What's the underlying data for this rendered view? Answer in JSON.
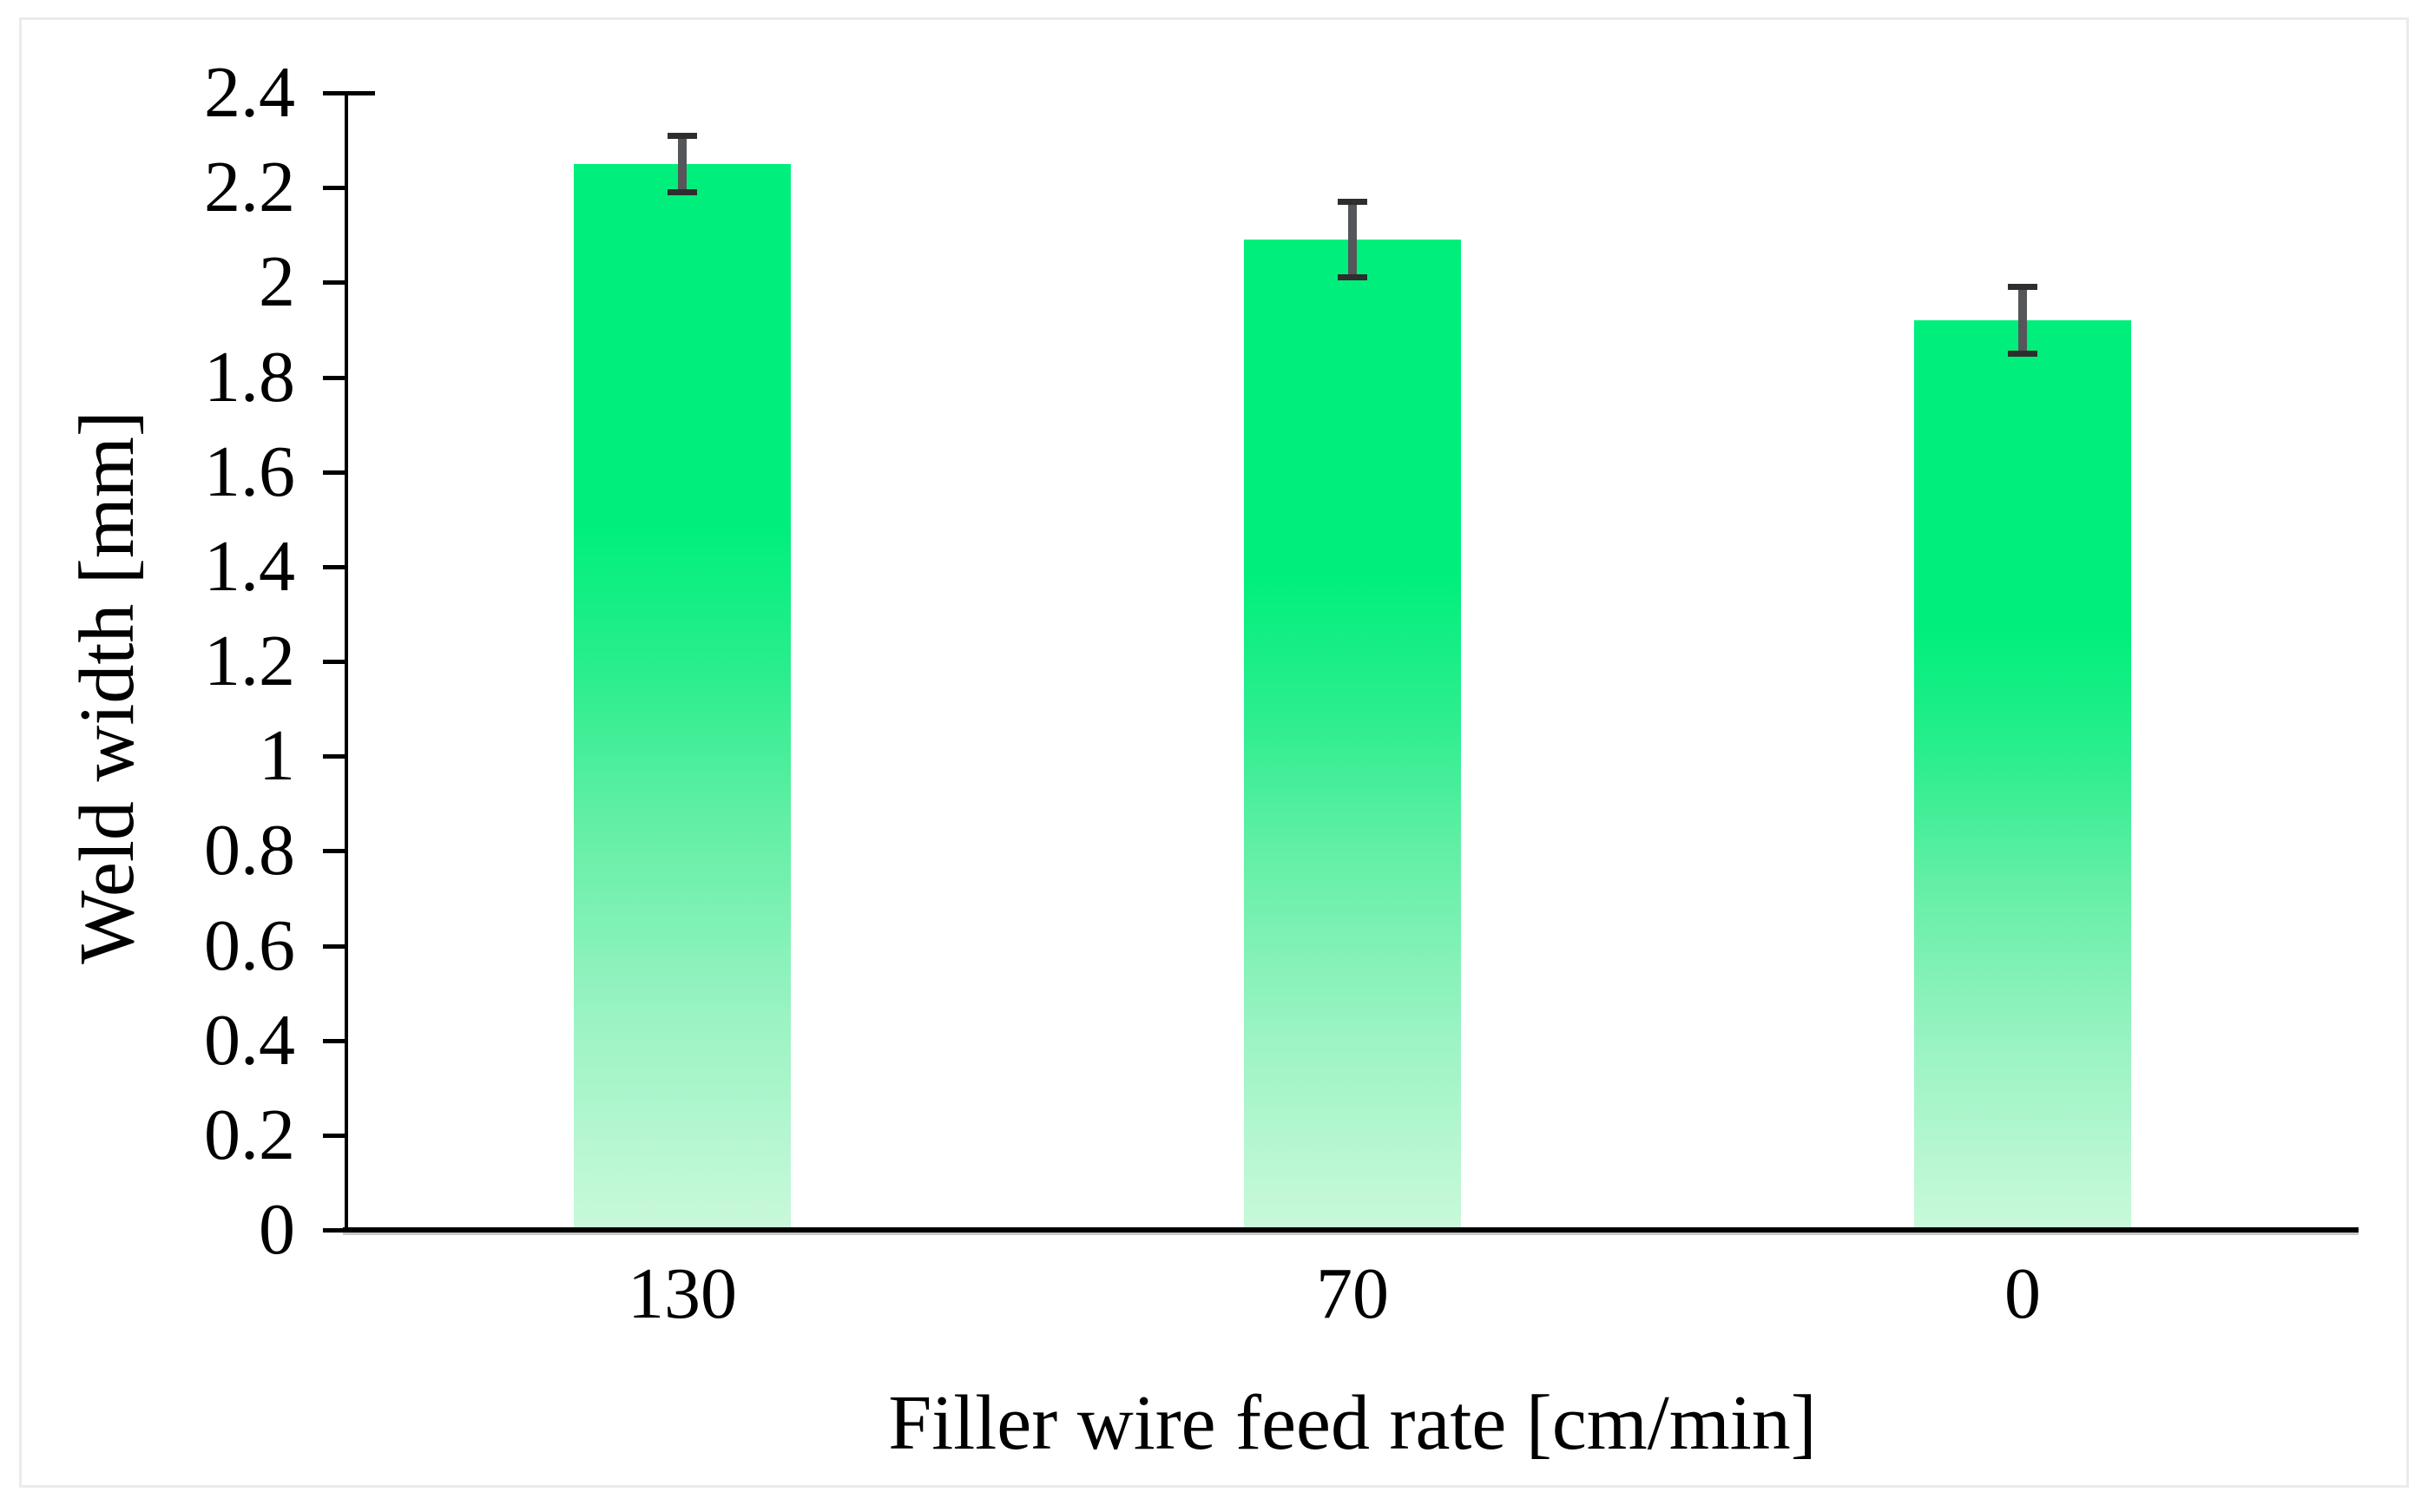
{
  "page": {
    "background_color": "#ffffff",
    "frame_border_color": "#ebebeb"
  },
  "chart_data": {
    "type": "bar",
    "title": "",
    "xlabel": "Filler wire feed rate [cm/min]",
    "ylabel": "Weld width [mm]",
    "categories": [
      "130",
      "70",
      "0"
    ],
    "values": [
      2.25,
      2.09,
      1.92
    ],
    "error_bars": [
      0.06,
      0.08,
      0.07
    ],
    "ylim": [
      0,
      2.4
    ],
    "ytick_step": 0.2,
    "ytick_labels": [
      "0",
      "0.2",
      "0.4",
      "0.6",
      "0.8",
      "1",
      "1.2",
      "1.4",
      "1.6",
      "1.8",
      "2",
      "2.2",
      "2.4"
    ],
    "grid": false,
    "legend": "none",
    "axis_color": "#000000",
    "bar_color_top": "#00ef7c",
    "bar_color_bottom": "#c9f9da",
    "bar_gradient_stops": [
      "#00ef7c 0%",
      "#00ef7c 34%",
      "#2bee8e 48%",
      "#63efa5 62%",
      "#9af3c3 80%",
      "#c9f9da 100%"
    ],
    "error_bar_color": "#54565a",
    "error_bar_cap_color": "#2e2e2e"
  }
}
